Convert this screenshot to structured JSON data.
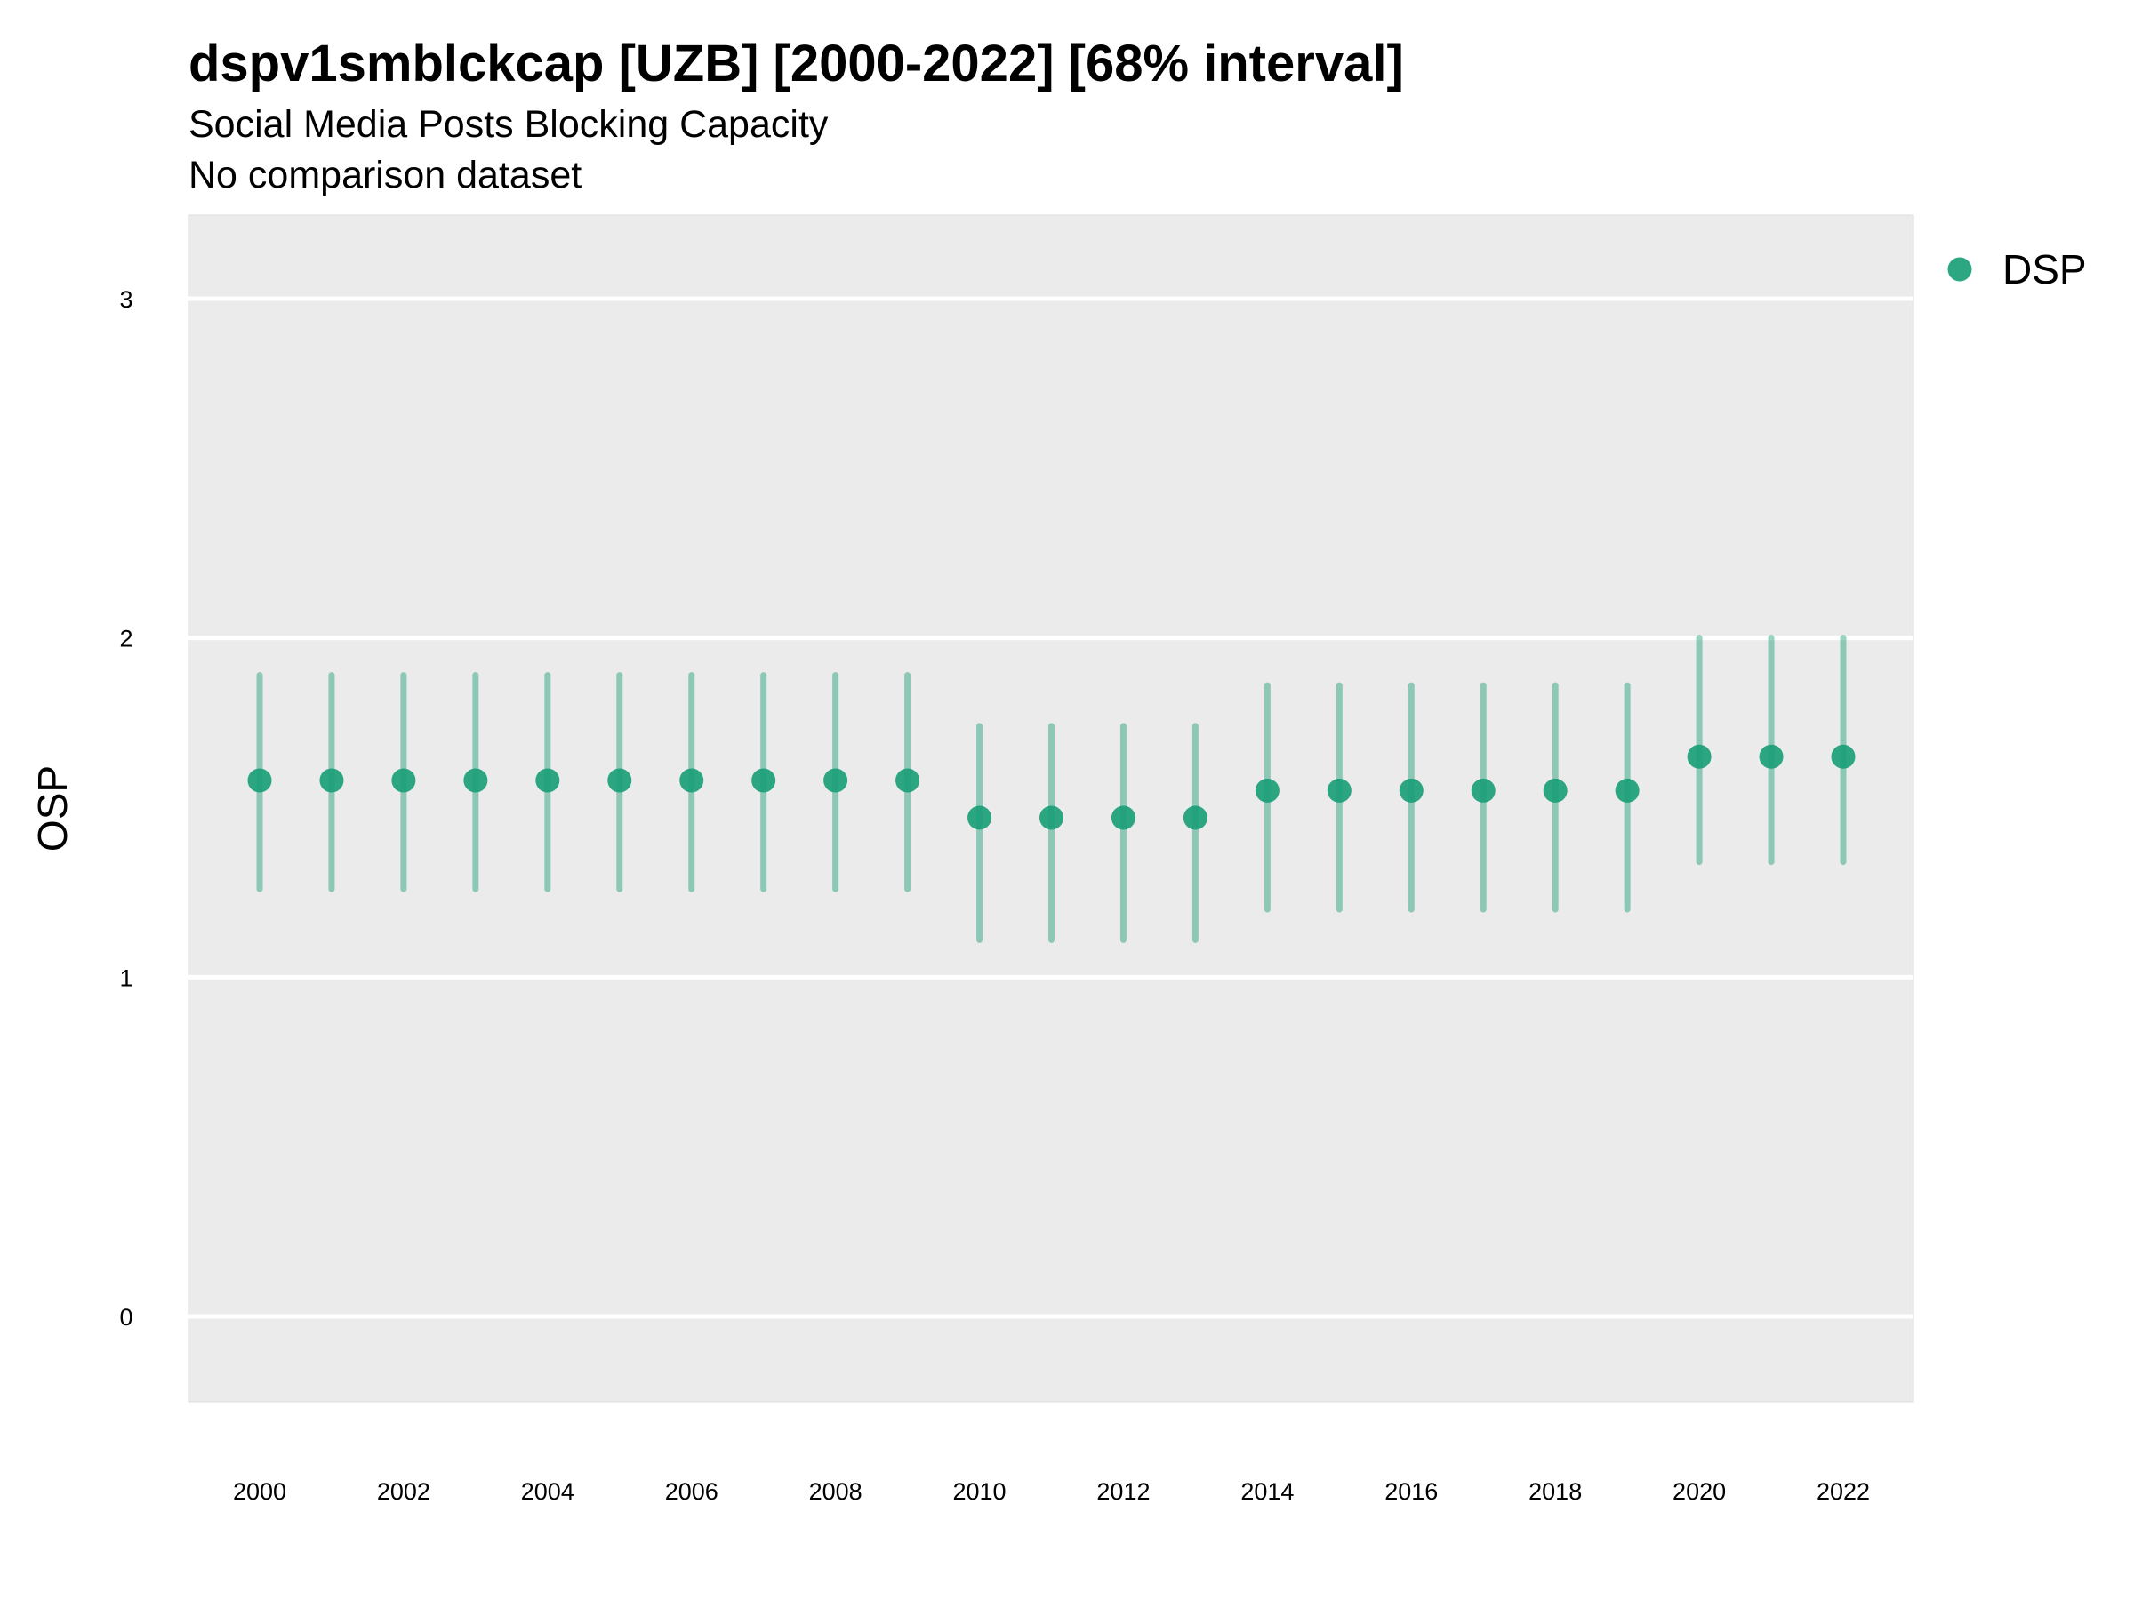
{
  "chart_data": {
    "type": "scatter",
    "title": "dspv1smblckcap [UZB] [2000-2022] [68% interval]",
    "subtitle": "Social Media Posts Blocking Capacity",
    "subtitle2": "No comparison dataset",
    "xlabel": "",
    "ylabel": "OSP",
    "xlim": [
      1999,
      2023
    ],
    "ylim": [
      -0.25,
      3.25
    ],
    "x_ticks": [
      2000,
      2002,
      2004,
      2006,
      2008,
      2010,
      2012,
      2014,
      2016,
      2018,
      2020,
      2022
    ],
    "x_tick_labels": [
      "2000",
      "2002",
      "2004",
      "2006",
      "2008",
      "2010",
      "2012",
      "2014",
      "2016",
      "2018",
      "2020",
      "2022"
    ],
    "y_ticks": [
      0,
      1,
      2,
      3
    ],
    "y_tick_labels": [
      "0",
      "1",
      "2",
      "3"
    ],
    "grid": true,
    "legend_position": "right-top",
    "series": [
      {
        "name": "DSP",
        "color": "#1b9e77",
        "x": [
          2000,
          2001,
          2002,
          2003,
          2004,
          2005,
          2006,
          2007,
          2008,
          2009,
          2010,
          2011,
          2012,
          2013,
          2014,
          2015,
          2016,
          2017,
          2018,
          2019,
          2020,
          2021,
          2022
        ],
        "y": [
          1.58,
          1.58,
          1.58,
          1.58,
          1.58,
          1.58,
          1.58,
          1.58,
          1.58,
          1.58,
          1.47,
          1.47,
          1.47,
          1.47,
          1.55,
          1.55,
          1.55,
          1.55,
          1.55,
          1.55,
          1.65,
          1.65,
          1.65
        ],
        "lower": [
          1.26,
          1.26,
          1.26,
          1.26,
          1.26,
          1.26,
          1.26,
          1.26,
          1.26,
          1.26,
          1.11,
          1.11,
          1.11,
          1.11,
          1.2,
          1.2,
          1.2,
          1.2,
          1.2,
          1.2,
          1.34,
          1.34,
          1.34
        ],
        "upper": [
          1.89,
          1.89,
          1.89,
          1.89,
          1.89,
          1.89,
          1.89,
          1.89,
          1.89,
          1.89,
          1.74,
          1.74,
          1.74,
          1.74,
          1.86,
          1.86,
          1.86,
          1.86,
          1.86,
          1.86,
          2.0,
          2.0,
          2.0
        ]
      }
    ]
  }
}
